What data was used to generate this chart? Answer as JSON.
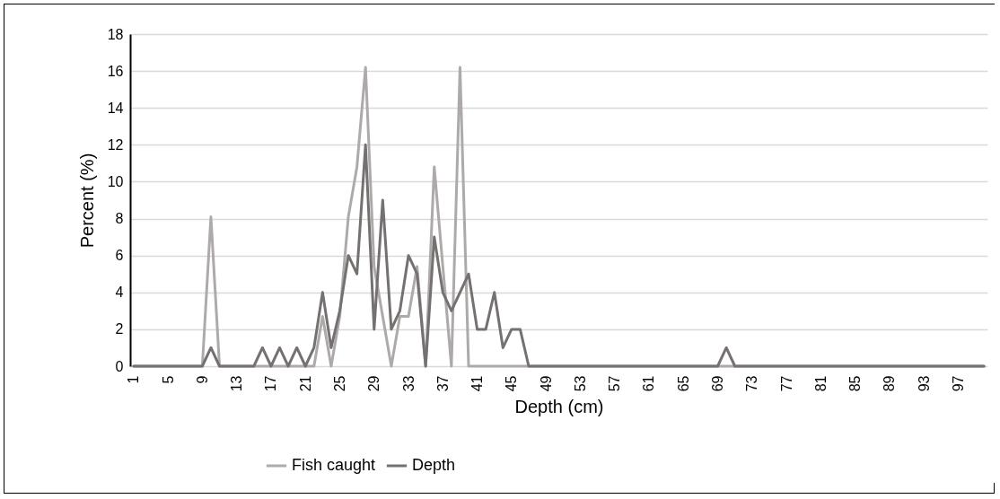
{
  "chart_data": {
    "type": "line",
    "xlabel": "Depth (cm)",
    "ylabel": "Percent (%)",
    "categories": [
      "1",
      null,
      null,
      null,
      "5",
      null,
      null,
      null,
      "9",
      null,
      null,
      null,
      "13",
      null,
      null,
      null,
      "17",
      null,
      null,
      null,
      "21",
      null,
      null,
      null,
      "25",
      null,
      null,
      null,
      "29",
      null,
      null,
      null,
      "33",
      null,
      null,
      null,
      "37",
      null,
      null,
      null,
      "41",
      null,
      null,
      null,
      "45",
      null,
      null,
      null,
      "49",
      null,
      null,
      null,
      "53",
      null,
      null,
      null,
      "57",
      null,
      null,
      null,
      "61",
      null,
      null,
      null,
      "65",
      null,
      null,
      null,
      "69",
      null,
      null,
      null,
      "73",
      null,
      null,
      null,
      "77",
      null,
      null,
      null,
      "81",
      null,
      null,
      null,
      "85",
      null,
      null,
      null,
      "89",
      null,
      null,
      null,
      "93",
      null,
      null,
      null,
      "97",
      null,
      null,
      null
    ],
    "series": [
      {
        "name": "Fish caught",
        "color": "#aeaaaa",
        "values": [
          0,
          0,
          0,
          0,
          0,
          0,
          0,
          0,
          0,
          8.1,
          0,
          0,
          0,
          0,
          0,
          0,
          0,
          0,
          0,
          0,
          0,
          0,
          2.7,
          0,
          2.7,
          8.1,
          10.8,
          16.2,
          5.4,
          2.7,
          0,
          2.7,
          2.7,
          5.4,
          0,
          10.8,
          5.4,
          0,
          16.2,
          0,
          0,
          0,
          0,
          0,
          0,
          0,
          0,
          0,
          0,
          0,
          0,
          0,
          0,
          0,
          0,
          0,
          0,
          0,
          0,
          0,
          0,
          0,
          0,
          0,
          0,
          0,
          0,
          0,
          0,
          0,
          0,
          0,
          0,
          0,
          0,
          0,
          0,
          0,
          0,
          0,
          0,
          0,
          0,
          0,
          0,
          0,
          0,
          0,
          0,
          0,
          0,
          0,
          0,
          0,
          0,
          0,
          0,
          0,
          0,
          0
        ]
      },
      {
        "name": "Depth",
        "color": "#767171",
        "values": [
          0,
          0,
          0,
          0,
          0,
          0,
          0,
          0,
          0,
          1,
          0,
          0,
          0,
          0,
          0,
          1,
          0,
          1,
          0,
          1,
          0,
          1,
          4,
          1,
          3,
          6,
          5,
          12,
          2,
          9,
          2,
          3,
          6,
          5,
          0,
          7,
          4,
          3,
          4,
          5,
          2,
          2,
          4,
          1,
          2,
          2,
          0,
          0,
          0,
          0,
          0,
          0,
          0,
          0,
          0,
          0,
          0,
          0,
          0,
          0,
          0,
          0,
          0,
          0,
          0,
          0,
          0,
          0,
          0,
          1,
          0,
          0,
          0,
          0,
          0,
          0,
          0,
          0,
          0,
          0,
          0,
          0,
          0,
          0,
          0,
          0,
          0,
          0,
          0,
          0,
          0,
          0,
          0,
          0,
          0,
          0,
          0,
          0,
          0,
          0
        ]
      }
    ],
    "ylim": [
      0,
      18
    ],
    "yticks": [
      0,
      2,
      4,
      6,
      8,
      10,
      12,
      14,
      16,
      18
    ],
    "grid": "y",
    "legend": "bottom"
  }
}
